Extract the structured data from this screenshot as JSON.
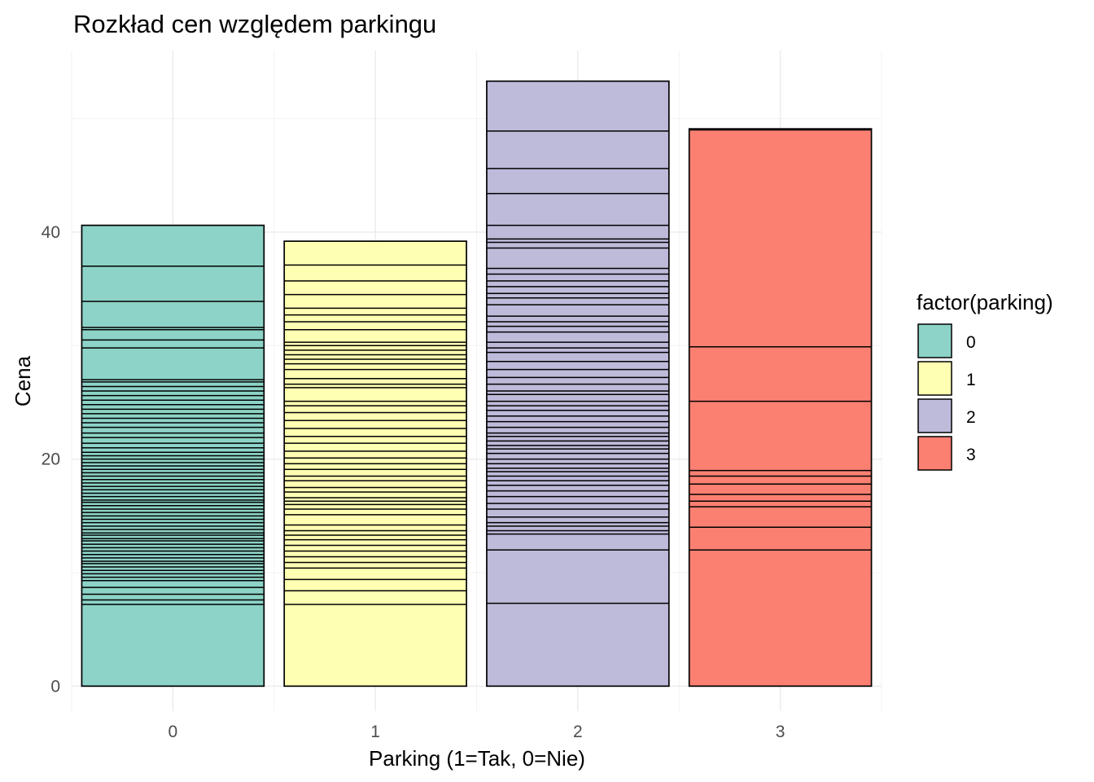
{
  "chart_data": {
    "type": "bar",
    "title": "Rozkład cen względem parkingu",
    "xlabel": "Parking (1=Tak, 0=Nie)",
    "ylabel": "Cena",
    "categories": [
      "0",
      "1",
      "2",
      "3"
    ],
    "y_ticks": [
      0,
      20,
      40
    ],
    "ylim": [
      -2.2,
      56
    ],
    "stacked": true,
    "segment_outline_color": "#000000",
    "grid": true,
    "legend": {
      "title": "factor(parking)",
      "position": "right",
      "entries": [
        "0",
        "1",
        "2",
        "3"
      ]
    },
    "colors": [
      "#8dd3c7",
      "#ffffb3",
      "#bebada",
      "#fb8072"
    ],
    "totals": [
      40.6,
      39.2,
      53.3,
      49.1
    ],
    "segment_boundaries": [
      [
        7.2,
        7.6,
        8.1,
        8.7,
        9.3,
        9.6,
        9.9,
        10.2,
        10.5,
        10.8,
        11.0,
        11.3,
        11.6,
        11.9,
        12.2,
        12.5,
        12.8,
        13.0,
        13.3,
        13.5,
        13.8,
        14.1,
        14.4,
        14.7,
        15.0,
        15.3,
        15.6,
        15.9,
        16.2,
        16.4,
        16.7,
        17.0,
        17.3,
        17.6,
        17.9,
        18.2,
        18.5,
        18.8,
        19.1,
        19.4,
        19.7,
        20.0,
        20.3,
        20.6,
        21.0,
        21.4,
        21.9,
        22.3,
        22.8,
        23.2,
        23.6,
        24.0,
        24.4,
        24.8,
        25.2,
        25.6,
        26.0,
        26.4,
        26.8,
        27.0,
        29.8,
        30.5,
        31.4,
        31.6,
        33.9,
        37.0,
        40.6
      ],
      [
        7.2,
        8.4,
        9.4,
        10.4,
        10.9,
        11.4,
        11.9,
        12.4,
        12.9,
        13.3,
        13.7,
        14.2,
        15.1,
        15.6,
        16.0,
        16.3,
        16.6,
        17.1,
        17.5,
        18.1,
        18.5,
        19.1,
        19.6,
        20.1,
        20.7,
        21.4,
        22.0,
        22.7,
        23.4,
        24.1,
        24.7,
        25.1,
        26.3,
        26.6,
        27.1,
        27.9,
        28.4,
        28.8,
        29.2,
        29.6,
        30.0,
        30.3,
        31.4,
        32.1,
        32.7,
        33.3,
        34.5,
        35.7,
        37.1,
        39.2
      ],
      [
        7.3,
        12.0,
        13.4,
        13.7,
        14.1,
        14.4,
        14.9,
        15.6,
        16.1,
        16.7,
        17.2,
        17.7,
        18.1,
        18.5,
        18.9,
        19.2,
        19.6,
        20.0,
        20.5,
        20.9,
        21.2,
        21.6,
        22.0,
        22.3,
        22.8,
        23.3,
        23.8,
        24.3,
        24.7,
        25.1,
        25.7,
        26.0,
        26.6,
        27.2,
        27.9,
        28.6,
        29.4,
        29.8,
        30.3,
        31.2,
        31.7,
        32.1,
        32.6,
        33.6,
        34.2,
        34.6,
        35.2,
        35.7,
        36.3,
        36.8,
        38.6,
        39.1,
        39.4,
        40.6,
        43.4,
        45.6,
        48.9,
        53.3
      ],
      [
        12.0,
        14.0,
        15.8,
        16.3,
        16.9,
        17.8,
        18.5,
        19.0,
        25.1,
        29.9,
        49.0,
        49.1
      ]
    ]
  }
}
